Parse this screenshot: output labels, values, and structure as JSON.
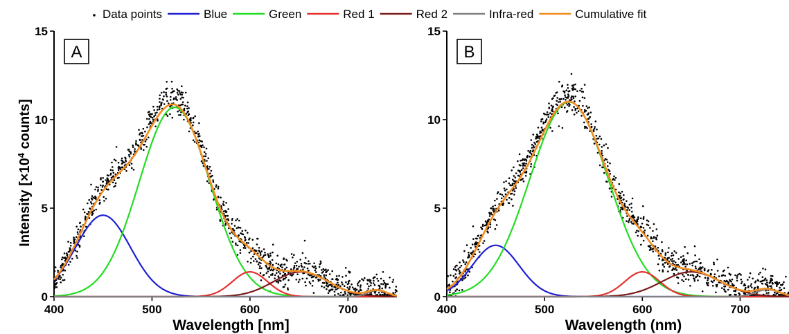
{
  "figure": {
    "y_label": {
      "prefix": "Intensity [×10",
      "sup": "4",
      "suffix": " counts]"
    }
  },
  "legend": [
    {
      "label": "Data points",
      "type": "dot",
      "color": "#000000"
    },
    {
      "label": "Blue",
      "type": "line",
      "color": "#1f1fd6"
    },
    {
      "label": "Green",
      "type": "line",
      "color": "#22dd22"
    },
    {
      "label": "Red 1",
      "type": "line",
      "color": "#e53030"
    },
    {
      "label": "Red 2",
      "type": "line",
      "color": "#7a1a1a"
    },
    {
      "label": "Infra-red",
      "type": "line",
      "color": "#808080"
    },
    {
      "label": "Cumulative fit",
      "type": "line",
      "color": "#f28c1e"
    }
  ],
  "chart_data": [
    {
      "type": "line",
      "panel_label": "A",
      "xlabel": "Wavelength [nm]",
      "ylabel": "Intensity [×10^4 counts]",
      "xlim": [
        400,
        750
      ],
      "ylim": [
        0,
        15
      ],
      "x_ticks": [
        400,
        500,
        600,
        700
      ],
      "y_ticks": [
        0,
        5,
        10,
        15
      ],
      "components": [
        {
          "name": "Blue",
          "color": "#1f1fd6",
          "amplitude": 4.6,
          "center": 450,
          "sigma": 28
        },
        {
          "name": "Green",
          "color": "#22dd22",
          "amplitude": 10.7,
          "center": 523,
          "sigma": 36
        },
        {
          "name": "Red 1",
          "color": "#e53030",
          "amplitude": 1.4,
          "center": 600,
          "sigma": 18
        },
        {
          "name": "Red 2",
          "color": "#7a1a1a",
          "amplitude": 1.4,
          "center": 652,
          "sigma": 28
        },
        {
          "name": "Infra-red",
          "color": "#808080",
          "amplitude": 0.35,
          "center": 730,
          "sigma": 10
        }
      ],
      "cumulative_fit": {
        "name": "Cumulative fit",
        "color": "#f28c1e"
      },
      "data_points": {
        "name": "Data points",
        "x_range": [
          400,
          750
        ],
        "count": 1100,
        "scatter": 0.45,
        "peak": [
          525,
          12.9
        ]
      }
    },
    {
      "type": "line",
      "panel_label": "B",
      "xlabel": "Wavelength (nm)",
      "ylabel": "",
      "xlim": [
        400,
        750
      ],
      "ylim": [
        0,
        15
      ],
      "x_ticks": [
        400,
        500,
        600,
        700
      ],
      "y_ticks": [
        0,
        5,
        10,
        15
      ],
      "components": [
        {
          "name": "Blue",
          "color": "#1f1fd6",
          "amplitude": 2.9,
          "center": 450,
          "sigma": 24
        },
        {
          "name": "Green",
          "color": "#22dd22",
          "amplitude": 11.0,
          "center": 525,
          "sigma": 40
        },
        {
          "name": "Red 1",
          "color": "#e53030",
          "amplitude": 1.4,
          "center": 600,
          "sigma": 18
        },
        {
          "name": "Red 2",
          "color": "#7a1a1a",
          "amplitude": 1.4,
          "center": 650,
          "sigma": 30
        },
        {
          "name": "Infra-red",
          "color": "#808080",
          "amplitude": 0.4,
          "center": 728,
          "sigma": 12
        }
      ],
      "cumulative_fit": {
        "name": "Cumulative fit",
        "color": "#f28c1e"
      },
      "data_points": {
        "name": "Data points",
        "x_range": [
          400,
          750
        ],
        "count": 1100,
        "scatter": 0.45,
        "peak": [
          525,
          13.0
        ]
      }
    }
  ]
}
